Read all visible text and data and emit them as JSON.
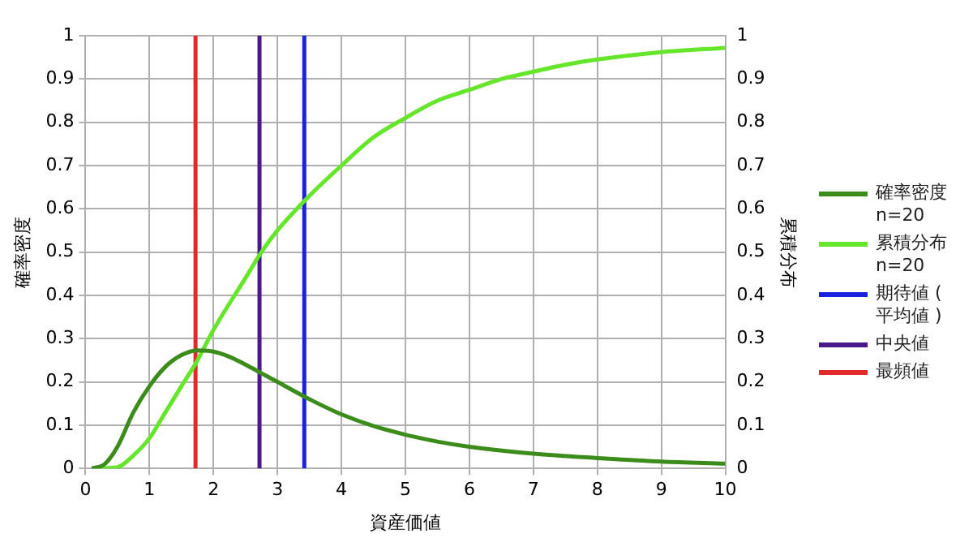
{
  "chart_data": {
    "type": "line",
    "xlabel": "資産価値",
    "ylabel": "確率密度",
    "y2label": "累積分布",
    "xlim": [
      0,
      10
    ],
    "xticks": [
      0,
      1,
      2,
      3,
      4,
      5,
      6,
      7,
      8,
      9,
      10
    ],
    "ylim": [
      0,
      1
    ],
    "yticks": [
      0,
      0.1,
      0.2,
      0.3,
      0.4,
      0.5,
      0.6,
      0.7,
      0.8,
      0.9,
      1
    ],
    "y2lim": [
      0,
      1
    ],
    "y2ticks": [
      0,
      0.1,
      0.2,
      0.3,
      0.4,
      0.5,
      0.6,
      0.7,
      0.8,
      0.9,
      1
    ],
    "grid": true,
    "legend": "right",
    "marker": "none",
    "series": [
      {
        "name": "確率密度 n=20",
        "color": "#3c8c1c",
        "x": [
          0.1,
          0.3,
          0.5,
          0.75,
          1,
          1.25,
          1.5,
          1.75,
          2,
          2.25,
          2.5,
          2.75,
          3,
          3.5,
          4,
          4.5,
          5,
          5.5,
          6,
          7,
          8,
          9,
          10
        ],
        "values": [
          0,
          0.01,
          0.05,
          0.13,
          0.19,
          0.235,
          0.262,
          0.273,
          0.27,
          0.258,
          0.24,
          0.22,
          0.2,
          0.16,
          0.125,
          0.098,
          0.078,
          0.062,
          0.05,
          0.034,
          0.024,
          0.016,
          0.011
        ]
      },
      {
        "name": "累積分布 n=20",
        "color": "#66e62a",
        "axis": "y2",
        "x": [
          0.1,
          0.5,
          0.75,
          1,
          1.25,
          1.5,
          1.75,
          2,
          2.5,
          2.75,
          3,
          3.5,
          4,
          4.5,
          5,
          5.5,
          6,
          6.5,
          7,
          7.5,
          8,
          9,
          10
        ],
        "values": [
          0,
          0.003,
          0.03,
          0.07,
          0.13,
          0.19,
          0.25,
          0.32,
          0.44,
          0.5,
          0.55,
          0.63,
          0.7,
          0.765,
          0.81,
          0.85,
          0.875,
          0.9,
          0.917,
          0.933,
          0.945,
          0.962,
          0.972
        ]
      },
      {
        "name": "期待値 ( 平均値 )",
        "color": "#1a22e0",
        "x": [
          3.42,
          3.42
        ],
        "values": [
          0,
          1
        ]
      },
      {
        "name": "中央値",
        "color": "#4a1a8a",
        "x": [
          2.72,
          2.72
        ],
        "values": [
          0,
          1
        ]
      },
      {
        "name": "最頻値",
        "color": "#e02a2a",
        "x": [
          1.72,
          1.72
        ],
        "values": [
          0,
          1
        ]
      }
    ]
  }
}
